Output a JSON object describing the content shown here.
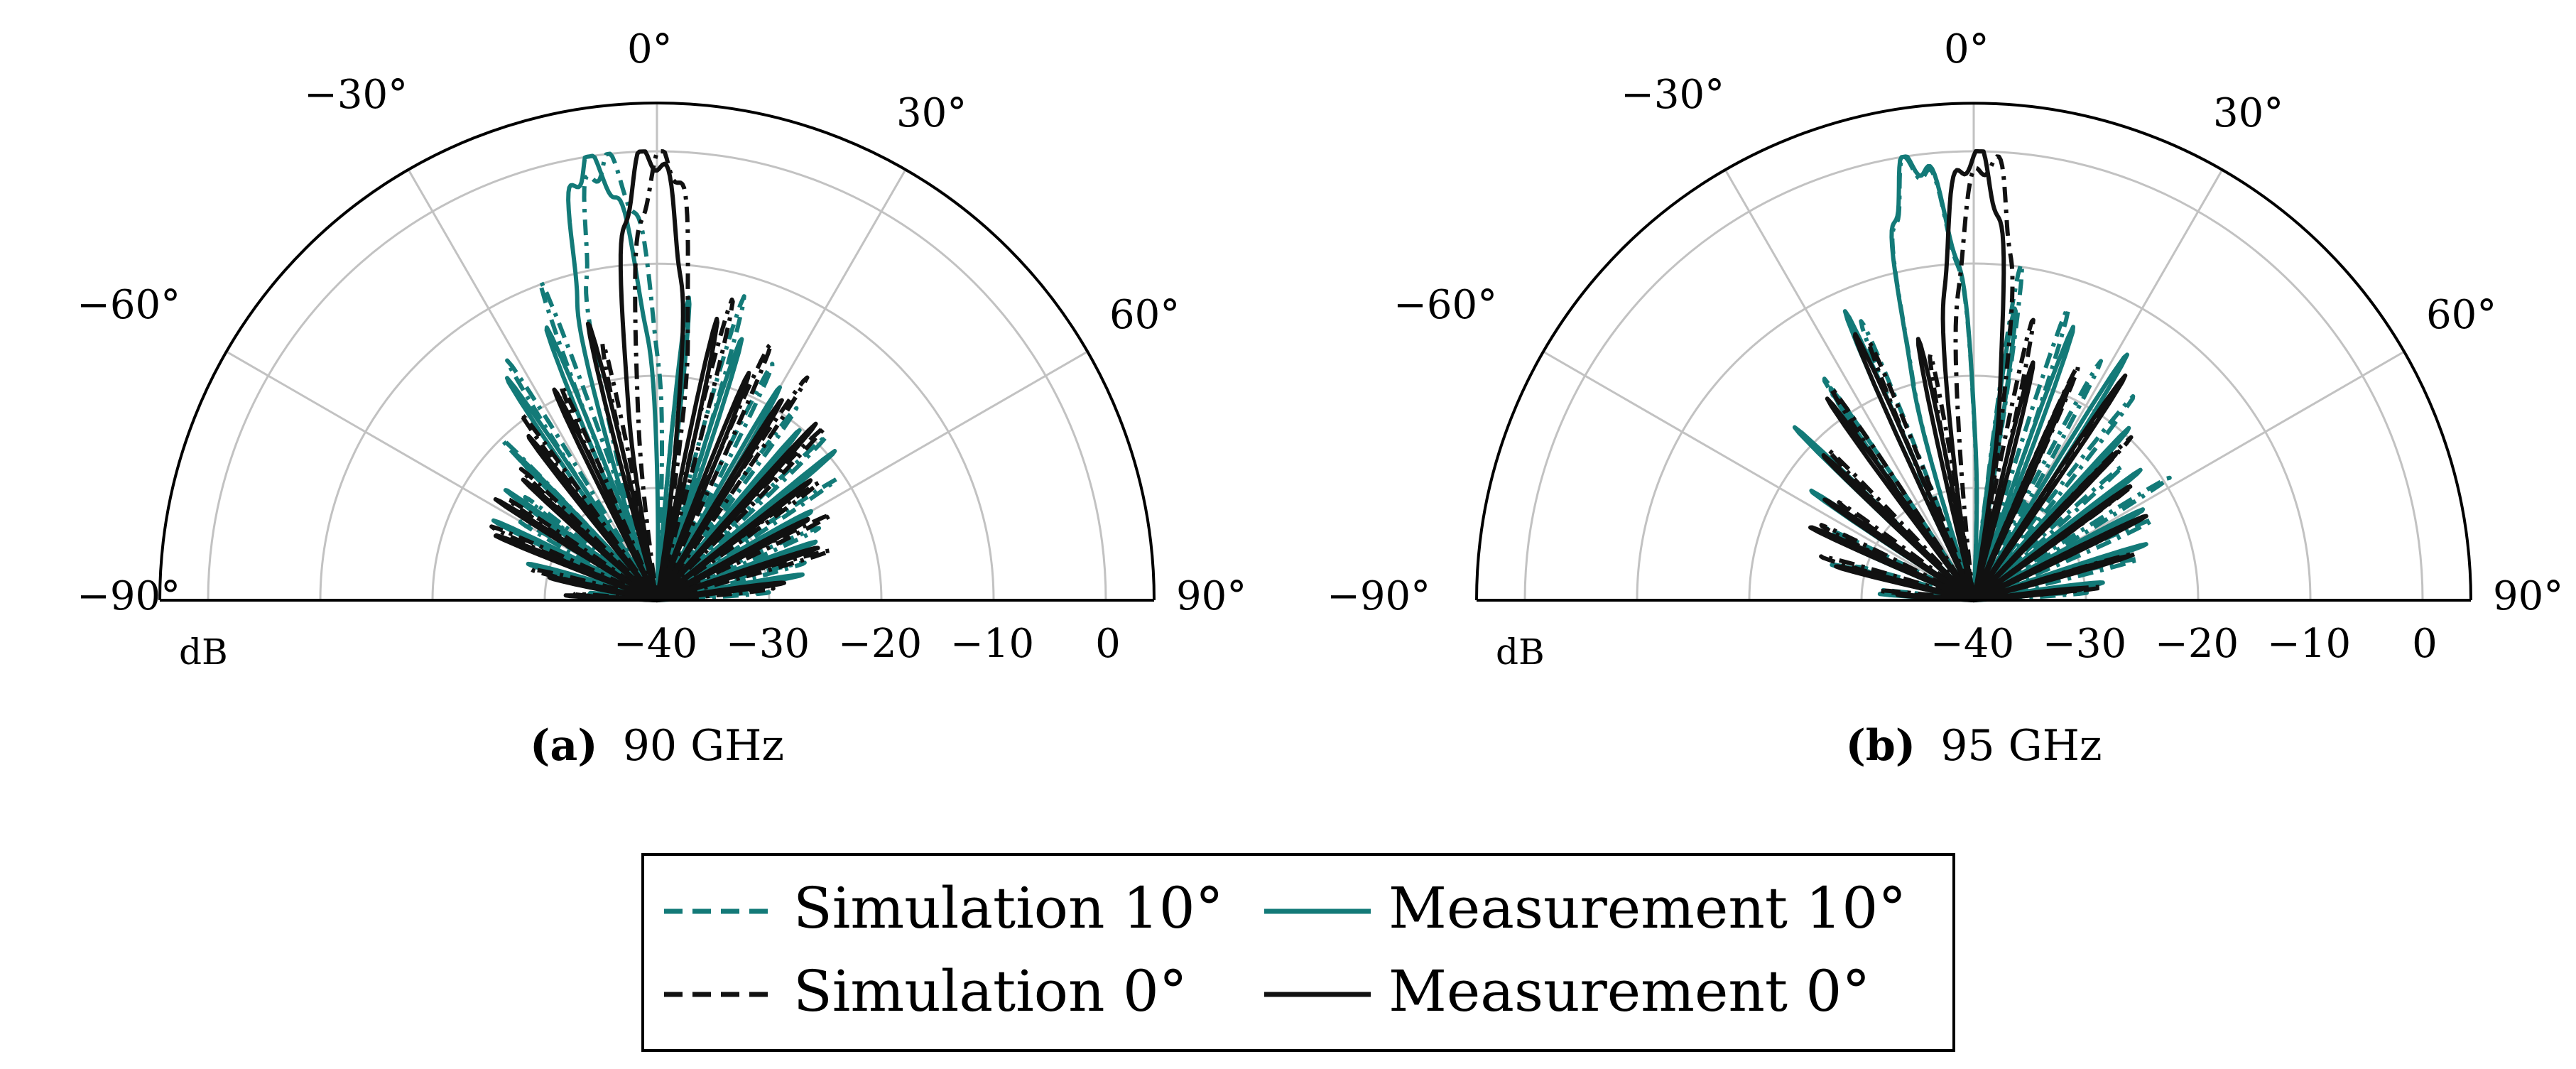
{
  "figure": {
    "colors": {
      "teal": "#137a78",
      "black": "#111111",
      "grid": "#c2c2c2",
      "axis": "#000000"
    }
  },
  "chart_data": [
    {
      "type": "line",
      "coordinate_system": "polar (half, -90 to 90 deg)",
      "caption_label": "(a)",
      "caption_text": "90 GHz",
      "angle_ticks": [
        "−90°",
        "−60°",
        "−30°",
        "0°",
        "30°",
        "60°",
        "90°"
      ],
      "angle_values": [
        -90,
        -60,
        -30,
        0,
        30,
        60,
        90
      ],
      "radial_ticks": [
        "−40",
        "−30",
        "−20",
        "−10",
        "0"
      ],
      "radial_values": [
        -40,
        -30,
        -20,
        -10,
        0
      ],
      "radial_label": "dB",
      "rlim": [
        -40,
        4
      ],
      "series": [
        {
          "name": "Simulation 10°",
          "style": "dashdot",
          "color": "#137a78",
          "main_lobe": {
            "angle": -7,
            "level": -0.8,
            "width": 6
          },
          "lobes": [
            [
              -20,
              -10,
              3
            ],
            [
              -32,
              -16,
              3
            ],
            [
              -44,
              -20,
              3
            ],
            [
              -52,
              -24,
              3
            ],
            [
              -60,
              -25,
              4
            ],
            [
              -68,
              -27,
              4
            ],
            [
              -78,
              -29,
              5
            ],
            [
              -86,
              -33,
              4
            ],
            [
              6,
              -16,
              3
            ],
            [
              16,
              -13,
              3
            ],
            [
              26,
              -16,
              3
            ],
            [
              36,
              -18,
              3
            ],
            [
              46,
              -20,
              3
            ],
            [
              56,
              -21,
              3
            ],
            [
              66,
              -23,
              4
            ],
            [
              76,
              -27,
              5
            ],
            [
              86,
              -31,
              4
            ]
          ]
        },
        {
          "name": "Measurement 10°",
          "style": "solid",
          "color": "#137a78",
          "main_lobe": {
            "angle": -9,
            "level": -0.5,
            "width": 6
          },
          "lobes": [
            [
              -22,
              -13,
              3
            ],
            [
              -34,
              -17,
              3
            ],
            [
              -44,
              -21,
              3
            ],
            [
              -54,
              -23,
              3
            ],
            [
              -64,
              -25,
              4
            ],
            [
              -74,
              -28,
              5
            ],
            [
              -84,
              -33,
              4
            ],
            [
              6,
              -14,
              3
            ],
            [
              18,
              -16,
              3
            ],
            [
              30,
              -17,
              3
            ],
            [
              40,
              -21,
              3
            ],
            [
              50,
              -20,
              3
            ],
            [
              60,
              -23,
              4
            ],
            [
              70,
              -25,
              4
            ],
            [
              80,
              -28,
              5
            ]
          ]
        },
        {
          "name": "Simulation 0°",
          "style": "dashdot",
          "color": "#111111",
          "main_lobe": {
            "angle": 1,
            "level": -0.6,
            "width": 5
          },
          "lobes": [
            [
              -12,
              -16,
              3
            ],
            [
              -24,
              -18,
              3
            ],
            [
              -36,
              -20,
              3
            ],
            [
              -46,
              -22,
              3
            ],
            [
              -56,
              -24,
              3
            ],
            [
              -66,
              -25,
              4
            ],
            [
              -76,
              -28,
              5
            ],
            [
              -86,
              -32,
              4
            ],
            [
              14,
              -12,
              3
            ],
            [
              24,
              -14,
              3
            ],
            [
              34,
              -17,
              3
            ],
            [
              44,
              -19,
              3
            ],
            [
              54,
              -21,
              3
            ],
            [
              64,
              -23,
              4
            ],
            [
              74,
              -25,
              4
            ],
            [
              84,
              -29,
              5
            ]
          ]
        },
        {
          "name": "Measurement 0°",
          "style": "solid",
          "color": "#111111",
          "main_lobe": {
            "angle": -1,
            "level": -0.3,
            "width": 5.5
          },
          "lobes": [
            [
              -14,
              -15,
              3
            ],
            [
              -26,
              -18,
              3
            ],
            [
              -38,
              -21,
              3
            ],
            [
              -48,
              -23,
              3
            ],
            [
              -58,
              -24,
              3
            ],
            [
              -68,
              -25,
              4
            ],
            [
              -78,
              -29,
              5
            ],
            [
              -87,
              -33,
              4
            ],
            [
              12,
              -15,
              3
            ],
            [
              22,
              -17,
              3
            ],
            [
              32,
              -19,
              3
            ],
            [
              42,
              -20,
              3
            ],
            [
              52,
              -22,
              3
            ],
            [
              62,
              -24,
              4
            ],
            [
              72,
              -26,
              4
            ],
            [
              82,
              -29,
              5
            ]
          ]
        }
      ]
    },
    {
      "type": "line",
      "coordinate_system": "polar (half, -90 to 90 deg)",
      "caption_label": "(b)",
      "caption_text": "95 GHz",
      "angle_ticks": [
        "−90°",
        "−60°",
        "−30°",
        "0°",
        "30°",
        "60°",
        "90°"
      ],
      "angle_values": [
        -90,
        -60,
        -30,
        0,
        30,
        60,
        90
      ],
      "radial_ticks": [
        "−40",
        "−30",
        "−20",
        "−10",
        "0"
      ],
      "radial_values": [
        -40,
        -30,
        -20,
        -10,
        0
      ],
      "radial_label": "dB",
      "rlim": [
        -40,
        4
      ],
      "series": [
        {
          "name": "Simulation 10°",
          "style": "dashdot",
          "color": "#137a78",
          "main_lobe": {
            "angle": -8,
            "level": -0.8,
            "width": 6
          },
          "lobes": [
            [
              -22,
              -12,
              3
            ],
            [
              -34,
              -16,
              3
            ],
            [
              -46,
              -21,
              3
            ],
            [
              -56,
              -23,
              3
            ],
            [
              -64,
              -26,
              4
            ],
            [
              -74,
              -28,
              5
            ],
            [
              -84,
              -32,
              4
            ],
            [
              8,
              -9,
              3
            ],
            [
              18,
              -12,
              3
            ],
            [
              28,
              -17,
              3
            ],
            [
              38,
              -17,
              3
            ],
            [
              48,
              -21,
              3
            ],
            [
              58,
              -20,
              3
            ],
            [
              66,
              -22,
              4
            ],
            [
              76,
              -26,
              5
            ],
            [
              86,
              -30,
              4
            ]
          ]
        },
        {
          "name": "Measurement 10°",
          "style": "solid",
          "color": "#137a78",
          "main_lobe": {
            "angle": -8,
            "level": -0.5,
            "width": 6
          },
          "lobes": [
            [
              -24,
              -13,
              3
            ],
            [
              -34,
              -17,
              3
            ],
            [
              -46,
              -19,
              3
            ],
            [
              -56,
              -22,
              3
            ],
            [
              -66,
              -25,
              4
            ],
            [
              -76,
              -28,
              5
            ],
            [
              -86,
              -32,
              4
            ],
            [
              8,
              -13,
              3
            ],
            [
              20,
              -15,
              3
            ],
            [
              32,
              -15,
              3
            ],
            [
              42,
              -20,
              3
            ],
            [
              52,
              -20,
              3
            ],
            [
              62,
              -23,
              4
            ],
            [
              72,
              -25,
              4
            ],
            [
              82,
              -28,
              5
            ]
          ]
        },
        {
          "name": "Simulation 0°",
          "style": "dashdot",
          "color": "#111111",
          "main_lobe": {
            "angle": 2,
            "level": -0.8,
            "width": 5
          },
          "lobes": [
            [
              -10,
              -17,
              3
            ],
            [
              -22,
              -16,
              3
            ],
            [
              -34,
              -18,
              3
            ],
            [
              -44,
              -22,
              3
            ],
            [
              -54,
              -24,
              3
            ],
            [
              -64,
              -25,
              4
            ],
            [
              -74,
              -27,
              5
            ],
            [
              -84,
              -31,
              4
            ],
            [
              12,
              -14,
              3
            ],
            [
              24,
              -16,
              3
            ],
            [
              34,
              -19,
              3
            ],
            [
              44,
              -21,
              3
            ],
            [
              54,
              -22,
              3
            ],
            [
              64,
              -24,
              4
            ],
            [
              74,
              -26,
              4
            ],
            [
              84,
              -29,
              5
            ]
          ]
        },
        {
          "name": "Measurement 0°",
          "style": "solid",
          "color": "#111111",
          "main_lobe": {
            "angle": 0,
            "level": -0.4,
            "width": 5.5
          },
          "lobes": [
            [
              -12,
              -15,
              3
            ],
            [
              -24,
              -14,
              3
            ],
            [
              -36,
              -19,
              3
            ],
            [
              -46,
              -21,
              3
            ],
            [
              -56,
              -23,
              3
            ],
            [
              -66,
              -25,
              4
            ],
            [
              -76,
              -28,
              5
            ],
            [
              -86,
              -32,
              4
            ],
            [
              14,
              -17,
              3
            ],
            [
              24,
              -19,
              3
            ],
            [
              34,
              -17,
              3
            ],
            [
              44,
              -21,
              3
            ],
            [
              54,
              -22,
              3
            ],
            [
              64,
              -24,
              4
            ],
            [
              74,
              -26,
              4
            ],
            [
              84,
              -29,
              5
            ]
          ]
        }
      ]
    }
  ],
  "legend": {
    "items": [
      {
        "label": "Simulation 10°",
        "style": "dashed",
        "color": "#137a78"
      },
      {
        "label": "Measurement 10°",
        "style": "solid",
        "color": "#137a78"
      },
      {
        "label": "Simulation 0°",
        "style": "dashed",
        "color": "#111111"
      },
      {
        "label": "Measurement 0°",
        "style": "solid",
        "color": "#111111"
      }
    ]
  }
}
